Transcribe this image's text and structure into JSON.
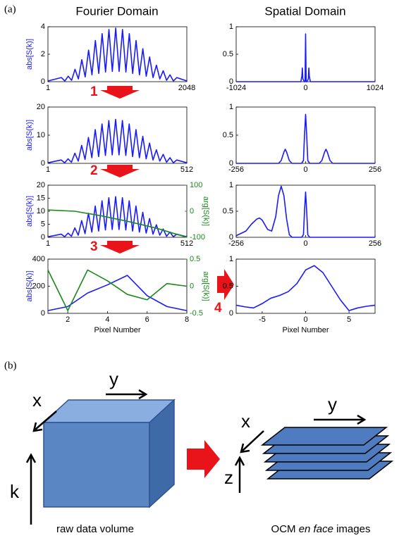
{
  "panel_labels": [
    "(a)",
    "(b)"
  ],
  "column_titles": [
    "Fourier Domain",
    "Spatial Domain"
  ],
  "steps": [
    "1",
    "2",
    "3",
    "4"
  ],
  "chart_data": [
    {
      "type": "line",
      "ylabel": "abs[S(k)]",
      "xlim": [
        1,
        2048
      ],
      "xticks": [
        1,
        2048
      ],
      "ylim": [
        0,
        4
      ],
      "yticks": [
        0,
        2,
        4
      ],
      "series": [
        {
          "color": "#1a1aff",
          "x": [
            1,
            200,
            250,
            300,
            350,
            400,
            450,
            500,
            550,
            600,
            650,
            700,
            750,
            800,
            850,
            900,
            950,
            1000,
            1050,
            1100,
            1150,
            1200,
            1250,
            1300,
            1350,
            1400,
            1450,
            1500,
            1550,
            1600,
            1650,
            1700,
            1750,
            1800,
            1850,
            1900,
            2048
          ],
          "values": [
            0.05,
            0.3,
            0.05,
            0.4,
            0.1,
            0.9,
            0.2,
            1.6,
            0.35,
            2.3,
            0.5,
            3.0,
            0.6,
            3.5,
            0.7,
            3.8,
            0.75,
            3.9,
            0.75,
            3.8,
            0.7,
            3.5,
            0.6,
            3.0,
            0.5,
            2.4,
            0.4,
            1.8,
            0.3,
            1.2,
            0.2,
            0.8,
            0.1,
            0.5,
            0.05,
            0.3,
            0.05
          ]
        }
      ]
    },
    {
      "type": "line",
      "xlim": [
        -1024,
        1024
      ],
      "xticks": [
        -1024,
        0,
        1024
      ],
      "ylim": [
        0,
        1
      ],
      "yticks": [
        0,
        0.5,
        1
      ],
      "series": [
        {
          "color": "#1a1aff",
          "x": [
            -1024,
            -70,
            -55,
            -48,
            -40,
            -20,
            -8,
            0,
            8,
            20,
            40,
            48,
            55,
            70,
            1024
          ],
          "values": [
            0,
            0,
            0.1,
            0.25,
            0.05,
            0,
            0,
            0.87,
            0,
            0,
            0.05,
            0.25,
            0.1,
            0,
            0
          ]
        }
      ]
    },
    {
      "type": "line",
      "ylabel": "abs[S(k)]",
      "xlim": [
        1,
        512
      ],
      "xticks": [
        1,
        512
      ],
      "ylim": [
        0,
        20
      ],
      "yticks": [
        0,
        10,
        20
      ],
      "series": [
        {
          "color": "#1a1aff",
          "x": [
            1,
            50,
            62.5,
            75,
            87.5,
            100,
            112.5,
            125,
            137.5,
            150,
            162.5,
            175,
            187.5,
            200,
            212.5,
            225,
            237.5,
            250,
            262.5,
            275,
            287.5,
            300,
            312.5,
            325,
            337.5,
            350,
            362.5,
            375,
            387.5,
            400,
            412.5,
            425,
            437.5,
            450,
            462.5,
            475,
            512
          ],
          "values": [
            0.2,
            1.2,
            0.2,
            1.6,
            0.4,
            3.6,
            0.8,
            6.4,
            1.4,
            9.2,
            2,
            12,
            2.4,
            14,
            2.8,
            15.2,
            3,
            15.6,
            3,
            15.2,
            2.8,
            14,
            2.4,
            12,
            2,
            9.6,
            1.6,
            7.2,
            1.2,
            4.8,
            0.8,
            3.2,
            0.4,
            2,
            0.2,
            1.2,
            0.2
          ]
        }
      ]
    },
    {
      "type": "line",
      "xlim": [
        -256,
        256
      ],
      "xticks": [
        -256,
        0,
        256
      ],
      "ylim": [
        0,
        1
      ],
      "yticks": [
        0,
        0.5,
        1
      ],
      "series": [
        {
          "color": "#1a1aff",
          "x": [
            -256,
            -100,
            -90,
            -80,
            -75,
            -70,
            -60,
            -50,
            -15,
            -8,
            -4,
            0,
            4,
            8,
            15,
            50,
            60,
            70,
            75,
            80,
            90,
            100,
            256
          ],
          "values": [
            0,
            0,
            0.05,
            0.2,
            0.25,
            0.2,
            0.05,
            0,
            0,
            0.05,
            0.5,
            0.87,
            0.5,
            0.05,
            0,
            0,
            0.05,
            0.2,
            0.25,
            0.2,
            0.05,
            0,
            0
          ]
        }
      ]
    },
    {
      "type": "line",
      "ylabel": "abs[S(k)]",
      "y2label": "arg[S(k)]",
      "xlim": [
        1,
        512
      ],
      "xticks": [
        1,
        512
      ],
      "ylim": [
        0,
        20
      ],
      "yticks": [
        0,
        5,
        10,
        15,
        20
      ],
      "y2lim": [
        -100,
        100
      ],
      "y2ticks": [
        -100,
        0,
        100
      ],
      "series": [
        {
          "color": "#1a1aff",
          "x": [
            1,
            50,
            62.5,
            75,
            87.5,
            100,
            112.5,
            125,
            137.5,
            150,
            162.5,
            175,
            187.5,
            200,
            212.5,
            225,
            237.5,
            250,
            262.5,
            275,
            287.5,
            300,
            312.5,
            325,
            337.5,
            350,
            362.5,
            375,
            387.5,
            400,
            412.5,
            425,
            437.5,
            450,
            462.5,
            475,
            512
          ],
          "values": [
            0.2,
            1.2,
            0.2,
            1.6,
            0.4,
            3.6,
            0.8,
            6.4,
            1.4,
            9.2,
            2,
            12,
            2.4,
            14,
            2.8,
            15.2,
            3,
            15.6,
            3,
            15.2,
            2.8,
            14,
            2.4,
            12,
            2,
            9.6,
            1.6,
            7.2,
            1.2,
            4.8,
            0.8,
            3.2,
            0.4,
            2,
            0.2,
            1.2,
            0.2
          ]
        },
        {
          "color": "#1a8a1a",
          "axis": "y2",
          "x": [
            1,
            100,
            200,
            300,
            400,
            512
          ],
          "values": [
            5,
            0,
            -18,
            -40,
            -65,
            -100
          ]
        }
      ]
    },
    {
      "type": "line",
      "xlim": [
        -256,
        256
      ],
      "xticks": [
        -256,
        0,
        256
      ],
      "ylim": [
        0,
        1
      ],
      "yticks": [
        0,
        0.5,
        1
      ],
      "series": [
        {
          "color": "#1a1aff",
          "x": [
            -256,
            -220,
            -200,
            -180,
            -170,
            -160,
            -140,
            -125,
            -110,
            -100,
            -90,
            -80,
            -70,
            -60,
            -50,
            -30,
            -15,
            -8,
            -4,
            0,
            4,
            8,
            15,
            256
          ],
          "values": [
            0.03,
            0.12,
            0.25,
            0.35,
            0.37,
            0.33,
            0.15,
            0.12,
            0.4,
            0.8,
            0.98,
            0.8,
            0.35,
            0.05,
            0,
            0,
            0,
            0.05,
            0.5,
            0.87,
            0.5,
            0.05,
            0,
            0
          ]
        }
      ]
    },
    {
      "type": "line",
      "ylabel": "abs[S(k)]",
      "y2label": "arg[S(k)]",
      "xlabel": "Pixel Number",
      "xlim": [
        1,
        8
      ],
      "xticks": [
        2,
        4,
        6,
        8
      ],
      "ylim": [
        0,
        400
      ],
      "yticks": [
        0,
        200,
        400
      ],
      "y2lim": [
        -0.5,
        0.5
      ],
      "y2ticks": [
        -0.5,
        0,
        0.5
      ],
      "series": [
        {
          "color": "#1a1aff",
          "x": [
            1,
            2,
            3,
            4,
            5,
            6,
            7,
            8
          ],
          "values": [
            20,
            50,
            150,
            210,
            280,
            130,
            50,
            20
          ]
        },
        {
          "color": "#1a8a1a",
          "axis": "y2",
          "x": [
            1,
            2,
            3,
            4,
            5,
            6,
            7,
            8
          ],
          "values": [
            0.3,
            -0.45,
            0.3,
            0.1,
            -0.15,
            -0.25,
            0.05,
            0
          ]
        }
      ]
    },
    {
      "type": "line",
      "xlabel": "Pixel Number",
      "xlim": [
        -8,
        8
      ],
      "xticks": [
        -5,
        0,
        5
      ],
      "ylim": [
        0,
        1
      ],
      "yticks": [
        0,
        0.5,
        1
      ],
      "series": [
        {
          "color": "#1a1aff",
          "x": [
            -8,
            -7,
            -6,
            -5,
            -4,
            -3,
            -2,
            -1,
            0,
            1,
            2,
            3,
            4,
            5,
            6,
            7,
            8
          ],
          "values": [
            0.15,
            0.12,
            0.1,
            0.18,
            0.28,
            0.33,
            0.4,
            0.55,
            0.8,
            0.88,
            0.75,
            0.5,
            0.25,
            0.05,
            0.1,
            0.13,
            0.15
          ]
        }
      ]
    }
  ],
  "diagram": {
    "left": {
      "axes": [
        "x",
        "y",
        "k"
      ],
      "caption": "raw data volume"
    },
    "right": {
      "axes": [
        "x",
        "y",
        "z"
      ],
      "caption": [
        "OCM ",
        "en face",
        " images"
      ]
    }
  }
}
